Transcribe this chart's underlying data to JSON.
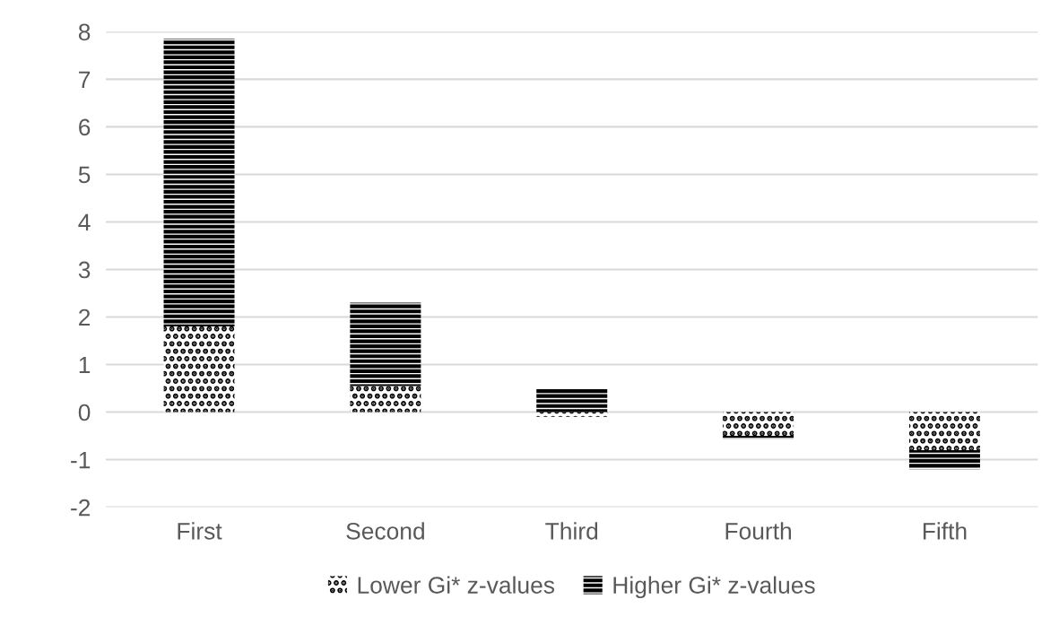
{
  "chart_data": {
    "type": "bar",
    "stacked": true,
    "categories": [
      "First",
      "Second",
      "Third",
      "Fourth",
      "Fifth"
    ],
    "series": [
      {
        "name": "Lower Gi* z-values",
        "color": "#000000",
        "values": [
          1.8,
          0.55,
          -0.1,
          -0.5,
          -0.8
        ]
      },
      {
        "name": "Higher Gi* z-values",
        "color": "#000000",
        "values": [
          6.05,
          1.75,
          0.5,
          -0.06,
          -0.4
        ]
      }
    ],
    "ylim": [
      -2,
      8
    ],
    "yticks": [
      -2,
      -1,
      0,
      1,
      2,
      3,
      4,
      5,
      6,
      7,
      8
    ],
    "grid": "y",
    "legend": "bottom"
  }
}
